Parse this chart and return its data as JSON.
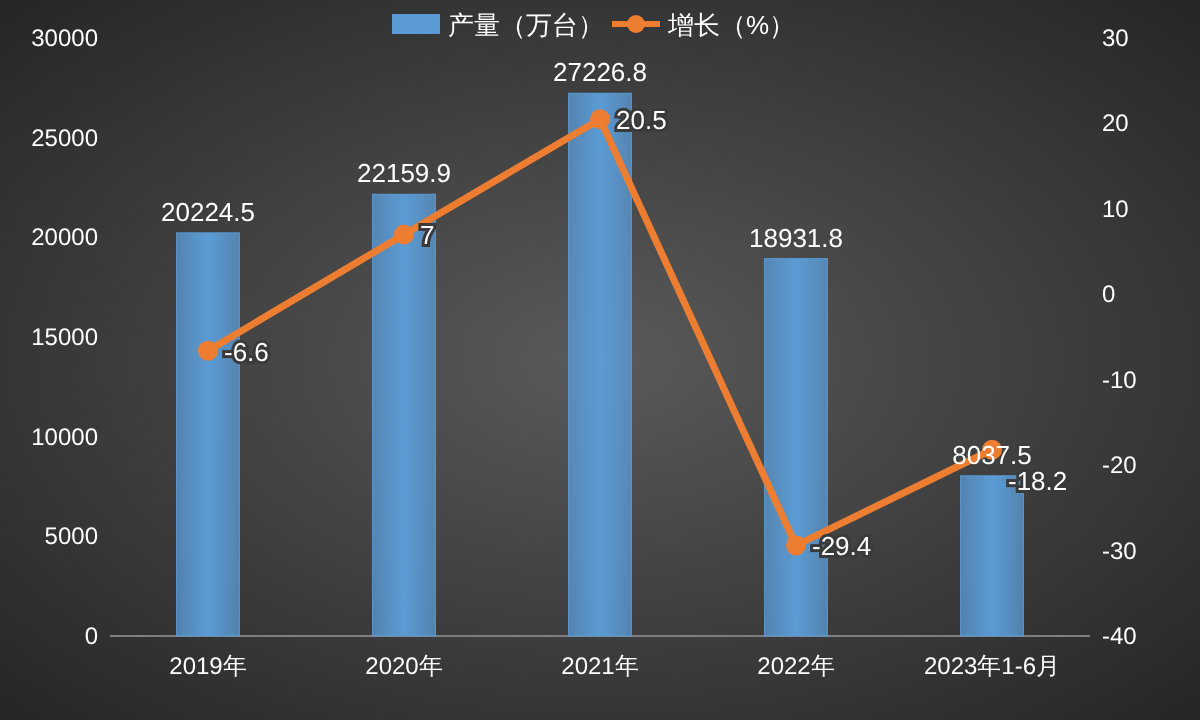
{
  "chart_data": {
    "type": "bar",
    "categories": [
      "2019年",
      "2020年",
      "2021年",
      "2022年",
      "2023年1-6月"
    ],
    "series": [
      {
        "name": "产量（万台）",
        "type": "bar",
        "color": "#5b9bd5",
        "values": [
          20224.5,
          22159.9,
          27226.8,
          18931.8,
          8037.5
        ]
      },
      {
        "name": "增长（%）",
        "type": "line",
        "axis": "y2",
        "color": "#ed7d31",
        "values": [
          -6.6,
          7,
          20.5,
          -29.4,
          -18.2
        ]
      }
    ],
    "ylim": [
      0,
      30000
    ],
    "yticks": [
      0,
      5000,
      10000,
      15000,
      20000,
      25000,
      30000
    ],
    "y2lim": [
      -40,
      30
    ],
    "y2ticks": [
      -40,
      -30,
      -20,
      -10,
      0,
      10,
      20,
      30
    ],
    "marker": "circle",
    "data_labels": true,
    "legend": "top"
  }
}
